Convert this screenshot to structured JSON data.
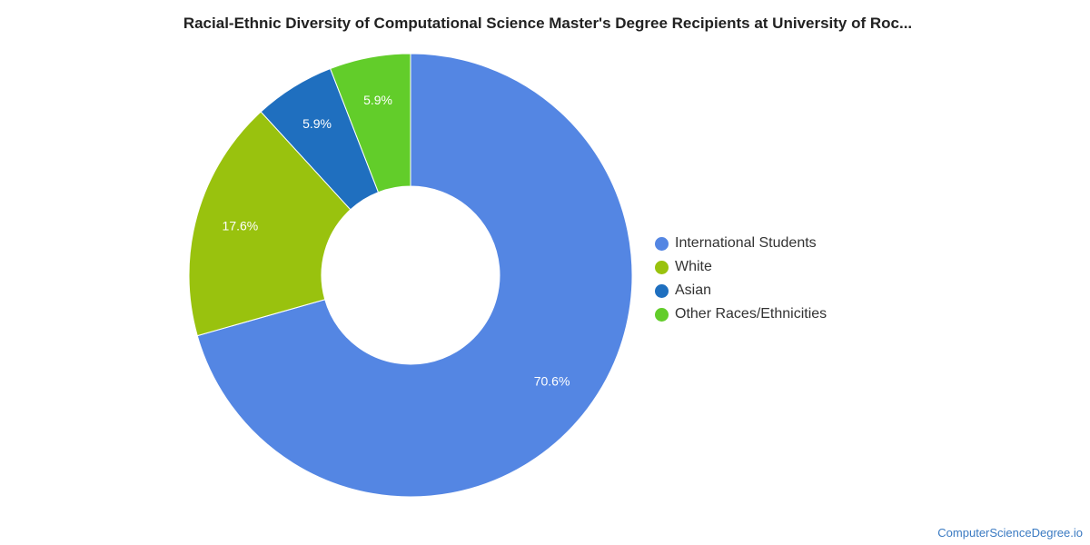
{
  "chart_data": {
    "type": "pie",
    "variant": "donut",
    "title": "Racial-Ethnic Diversity of Computational Science Master's Degree Recipients at University of Roc...",
    "slices": [
      {
        "label": "International Students",
        "value": 70.6,
        "data_label": "70.6%",
        "color": "#5486e3"
      },
      {
        "label": "White",
        "value": 17.6,
        "data_label": "17.6%",
        "color": "#99c20e"
      },
      {
        "label": "Asian",
        "value": 5.9,
        "data_label": "5.9%",
        "color": "#1f6fbf"
      },
      {
        "label": "Other Races/Ethnicities",
        "value": 5.9,
        "data_label": "5.9%",
        "color": "#62cd2a"
      }
    ],
    "start": "12 o'clock",
    "direction": "clockwise",
    "legend_position": "right"
  },
  "watermark": "ComputerScienceDegree.io"
}
